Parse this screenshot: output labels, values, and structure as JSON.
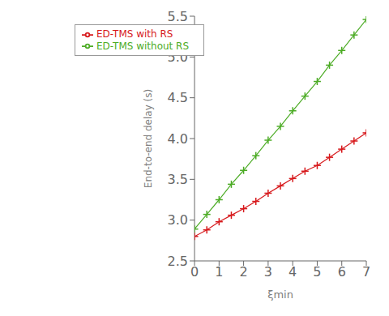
{
  "chart_data": {
    "type": "line",
    "x_label": "ξmin",
    "y_label": "End-to-end delay (s)",
    "x": [
      0,
      0.5,
      1.0,
      1.5,
      2.0,
      2.5,
      3.0,
      3.5,
      4.0,
      4.5,
      5.0,
      5.5,
      6.0,
      6.5,
      7.0
    ],
    "series": [
      {
        "name": "ED-TMS without RS",
        "color": "#4dac26",
        "marker": "plus",
        "values": [
          2.89,
          3.07,
          3.25,
          3.44,
          3.61,
          3.79,
          3.98,
          4.15,
          4.34,
          4.52,
          4.7,
          4.9,
          5.08,
          5.27,
          5.46
        ]
      },
      {
        "name": "ED-TMS with RS",
        "color": "#d7191c",
        "marker": "plus",
        "values": [
          2.8,
          2.88,
          2.98,
          3.06,
          3.14,
          3.23,
          3.33,
          3.42,
          3.51,
          3.6,
          3.67,
          3.77,
          3.87,
          3.97,
          4.07
        ]
      }
    ],
    "xlim": [
      0,
      7
    ],
    "ylim": [
      2.5,
      5.5
    ],
    "xticks": [
      0,
      1,
      2,
      3,
      4,
      5,
      6,
      7
    ],
    "yticks": [
      2.5,
      {
        "value": 3,
        "label": "3.0"
      },
      3.5,
      {
        "value": 4,
        "label": "4.0"
      },
      4.5,
      {
        "value": 5,
        "label": "5.0"
      },
      5.5
    ],
    "grid": false,
    "legend": "upper left"
  }
}
